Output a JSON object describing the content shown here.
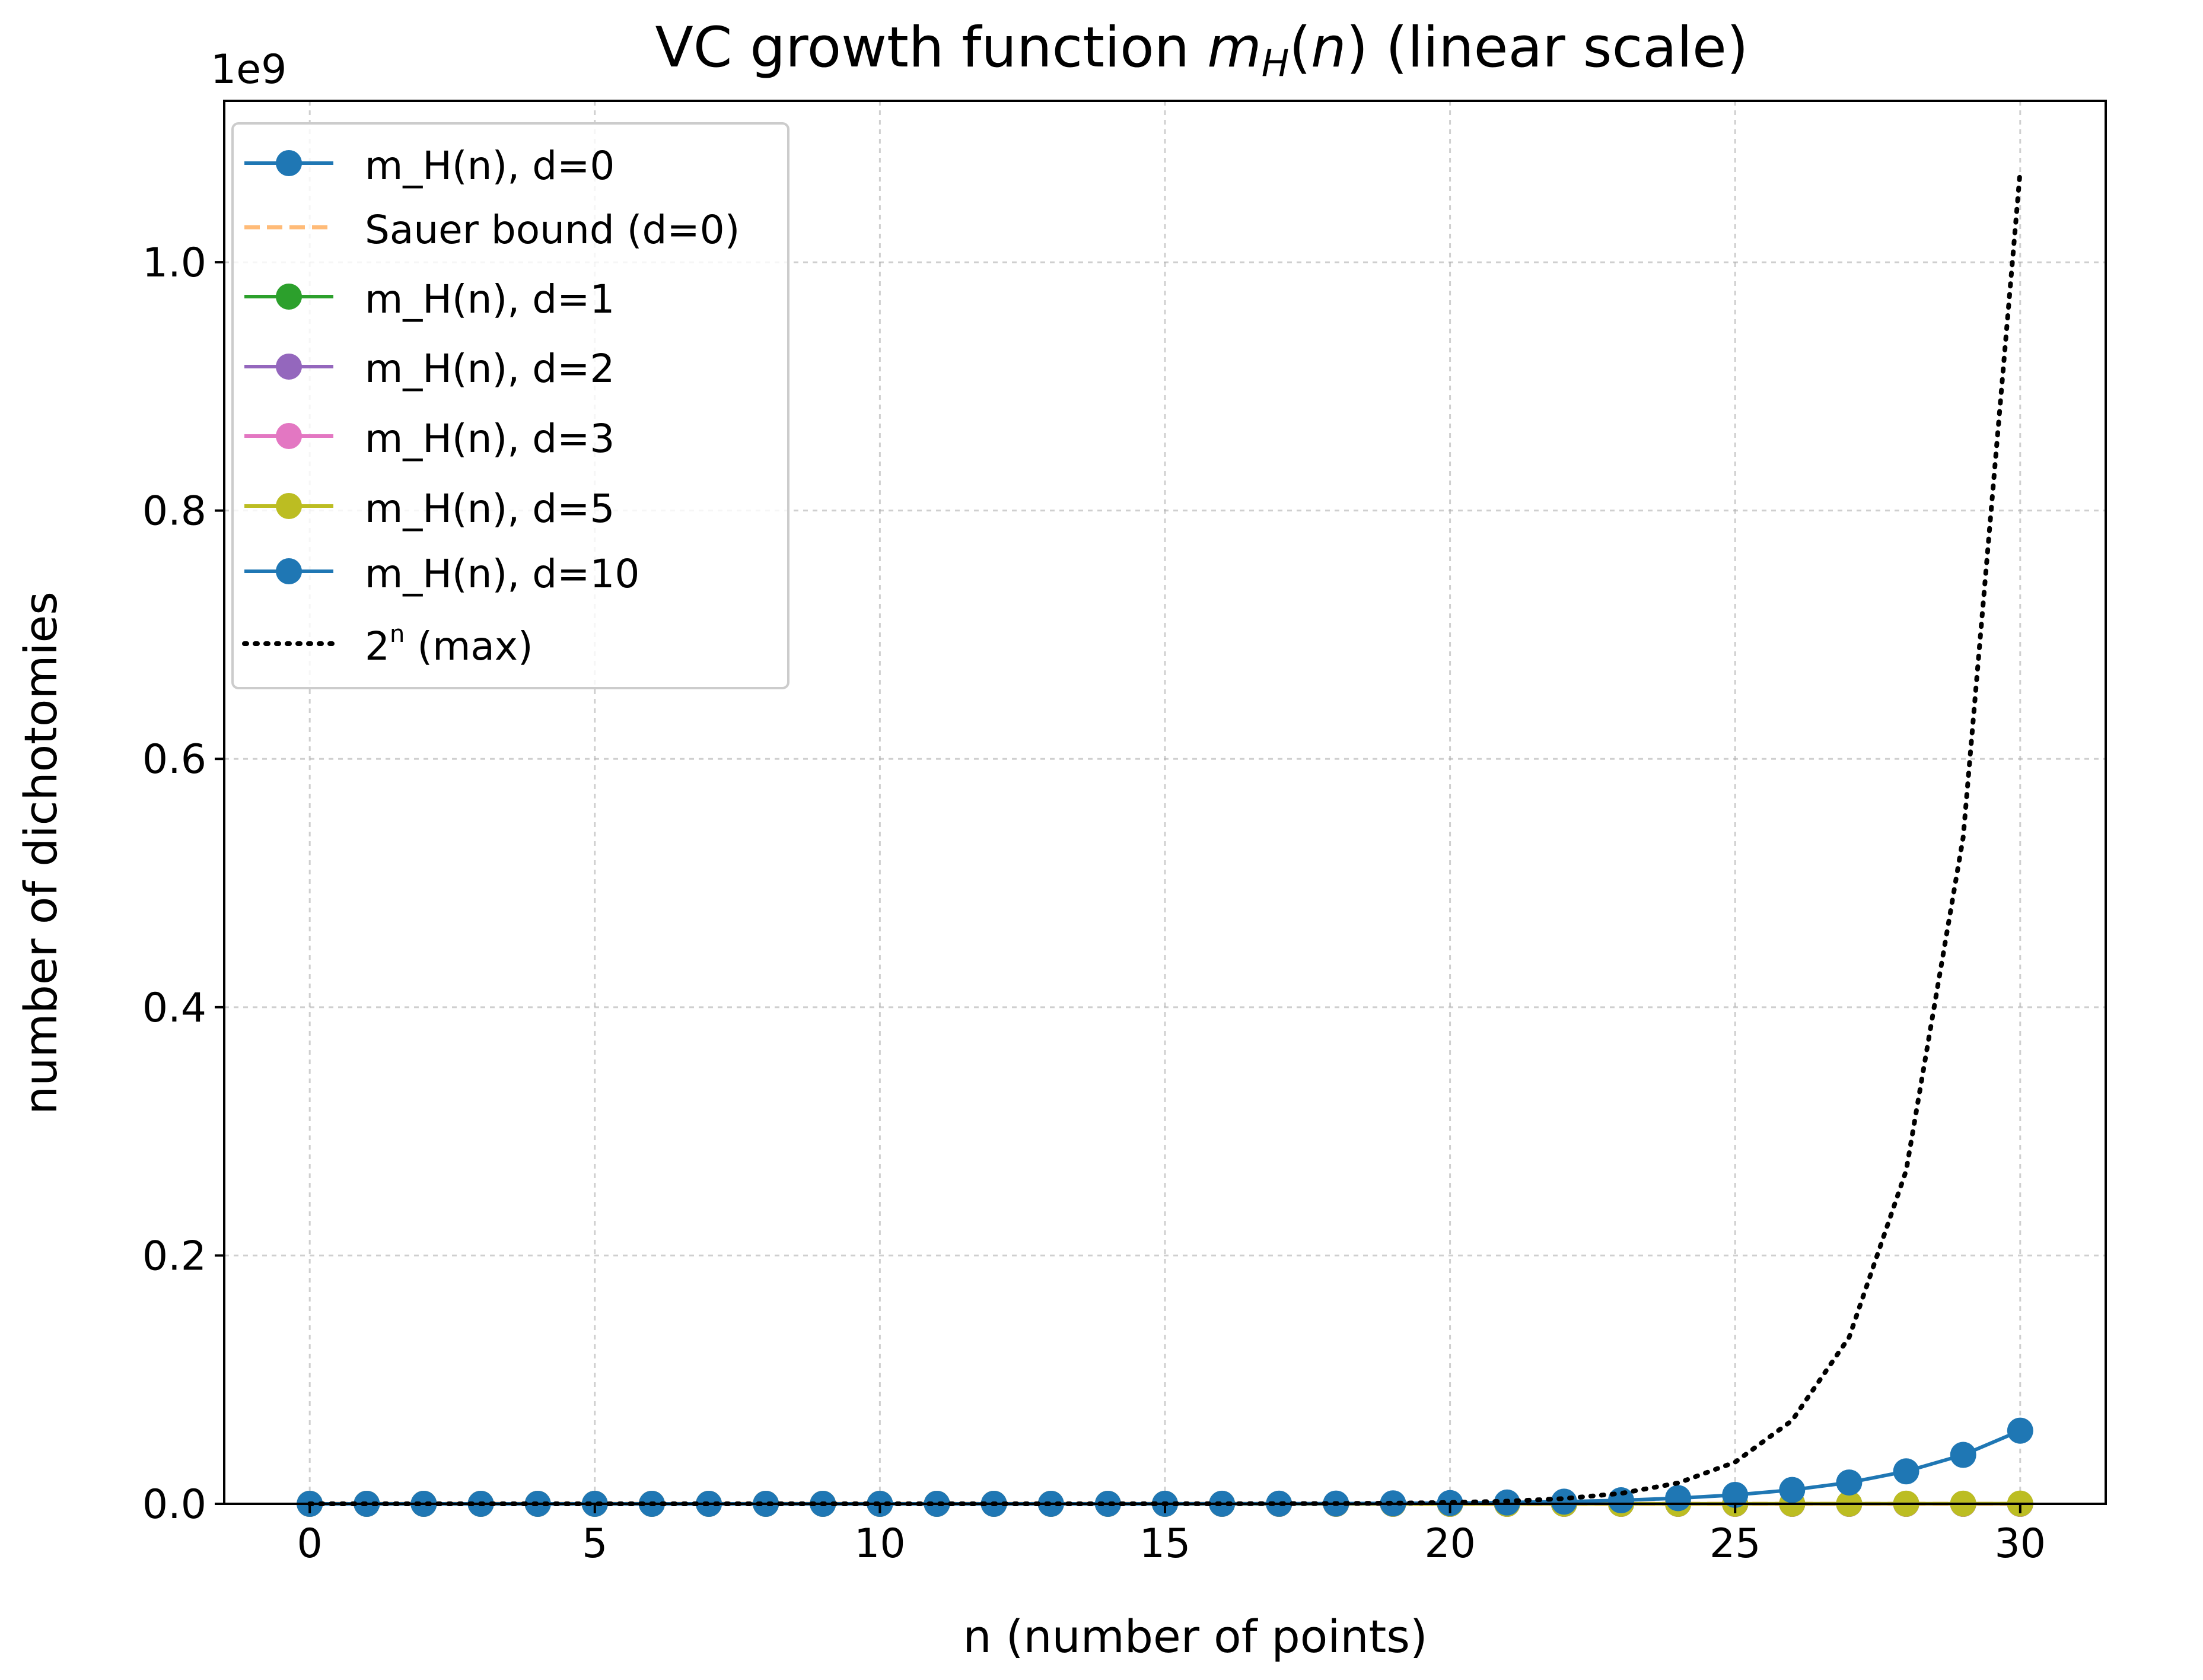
{
  "chart_data": {
    "type": "line",
    "title": {
      "prefix": "VC growth function ",
      "m": "m",
      "sub": "H",
      "paren": "(",
      "n": "n",
      "close": ")",
      "suffix": " (linear scale)"
    },
    "xlabel": "n (number of points)",
    "ylabel": "number of dichotomies",
    "y_offset_label": "1e9",
    "y_scale": 1000000000,
    "xlim": [
      -1.5,
      31.5
    ],
    "ylim": [
      0,
      1.13
    ],
    "xticks": [
      0,
      5,
      10,
      15,
      20,
      25,
      30
    ],
    "xtick_labels": [
      "0",
      "5",
      "10",
      "15",
      "20",
      "25",
      "30"
    ],
    "yticks": [
      0,
      0.2,
      0.4,
      0.6,
      0.8,
      1.0
    ],
    "ytick_labels": [
      "0.0",
      "0.2",
      "0.4",
      "0.6",
      "0.8",
      "1.0"
    ],
    "grid": true,
    "legend_position": "upper-left",
    "x": [
      0,
      1,
      2,
      3,
      4,
      5,
      6,
      7,
      8,
      9,
      10,
      11,
      12,
      13,
      14,
      15,
      16,
      17,
      18,
      19,
      20,
      21,
      22,
      23,
      24,
      25,
      26,
      27,
      28,
      29,
      30
    ],
    "series": [
      {
        "name": "m_H(n), d=0",
        "color": "#1f77b4",
        "style": "marker-line",
        "values": [
          1,
          1,
          1,
          1,
          1,
          1,
          1,
          1,
          1,
          1,
          1,
          1,
          1,
          1,
          1,
          1,
          1,
          1,
          1,
          1,
          1,
          1,
          1,
          1,
          1,
          1,
          1,
          1,
          1,
          1,
          1
        ]
      },
      {
        "name": "Sauer bound (d=0)",
        "color": "#ffbb78",
        "style": "dashed",
        "values": [
          1,
          1,
          1,
          1,
          1,
          1,
          1,
          1,
          1,
          1,
          1,
          1,
          1,
          1,
          1,
          1,
          1,
          1,
          1,
          1,
          1,
          1,
          1,
          1,
          1,
          1,
          1,
          1,
          1,
          1,
          1
        ]
      },
      {
        "name": "m_H(n), d=1",
        "color": "#2ca02c",
        "style": "marker-line",
        "values": [
          1,
          2,
          3,
          4,
          5,
          6,
          7,
          8,
          9,
          10,
          11,
          12,
          13,
          14,
          15,
          16,
          17,
          18,
          19,
          20,
          21,
          22,
          23,
          24,
          25,
          26,
          27,
          28,
          29,
          30,
          31
        ]
      },
      {
        "name": "m_H(n), d=2",
        "color": "#9467bd",
        "style": "marker-line",
        "values": [
          1,
          2,
          4,
          7,
          11,
          16,
          22,
          29,
          37,
          46,
          56,
          67,
          79,
          92,
          106,
          121,
          137,
          154,
          172,
          191,
          211,
          232,
          254,
          277,
          301,
          326,
          352,
          379,
          407,
          436,
          466
        ]
      },
      {
        "name": "m_H(n), d=3",
        "color": "#e377c2",
        "style": "marker-line",
        "values": [
          1,
          2,
          4,
          8,
          15,
          26,
          42,
          64,
          93,
          130,
          176,
          232,
          299,
          378,
          470,
          576,
          697,
          834,
          988,
          1160,
          1351,
          1562,
          1794,
          2048,
          2325,
          2626,
          2952,
          3304,
          3683,
          4090,
          4526
        ]
      },
      {
        "name": "m_H(n), d=5",
        "color": "#bcbd22",
        "style": "marker-line",
        "values": [
          1,
          2,
          4,
          8,
          16,
          32,
          63,
          120,
          219,
          382,
          638,
          1024,
          1586,
          2380,
          3473,
          4944,
          6885,
          9402,
          12616,
          16664,
          21700,
          27896,
          35443,
          44552,
          55455,
          68406,
          83682,
          101584,
          122438,
          146596,
          174437
        ]
      },
      {
        "name": "m_H(n), d=10",
        "color": "#1f77b4",
        "style": "marker-line",
        "values": [
          1,
          2,
          4,
          8,
          16,
          32,
          64,
          128,
          256,
          512,
          1024,
          2047,
          4083,
          8100,
          15914,
          30827,
          58651,
          109294,
          199140,
          354522,
          616666,
          1048576,
          1744436,
          2842226,
          4554257,
          7179800,
          11163496,
          17168220,
          26137471,
          39409270,
          58924592
        ]
      },
      {
        "name": "2ⁿ (max)",
        "color": "#000000",
        "style": "dotted",
        "values": [
          1,
          2,
          4,
          8,
          16,
          32,
          64,
          128,
          256,
          512,
          1024,
          2048,
          4096,
          8192,
          16384,
          32768,
          65536,
          131072,
          262144,
          524288,
          1048576,
          2097152,
          4194304,
          8388608,
          16777216,
          33554432,
          67108864,
          134217728,
          268435456,
          536870912,
          1073741824
        ]
      }
    ],
    "legend_labels": [
      {
        "text": "m_H(n), d=0"
      },
      {
        "text": "Sauer bound (d=0)"
      },
      {
        "text": "m_H(n), d=1"
      },
      {
        "text": "m_H(n), d=2"
      },
      {
        "text": "m_H(n), d=3"
      },
      {
        "text": "m_H(n), d=5"
      },
      {
        "text": "m_H(n), d=10"
      },
      {
        "base": "2",
        "exp": "n",
        "rest": " (max)"
      }
    ]
  }
}
